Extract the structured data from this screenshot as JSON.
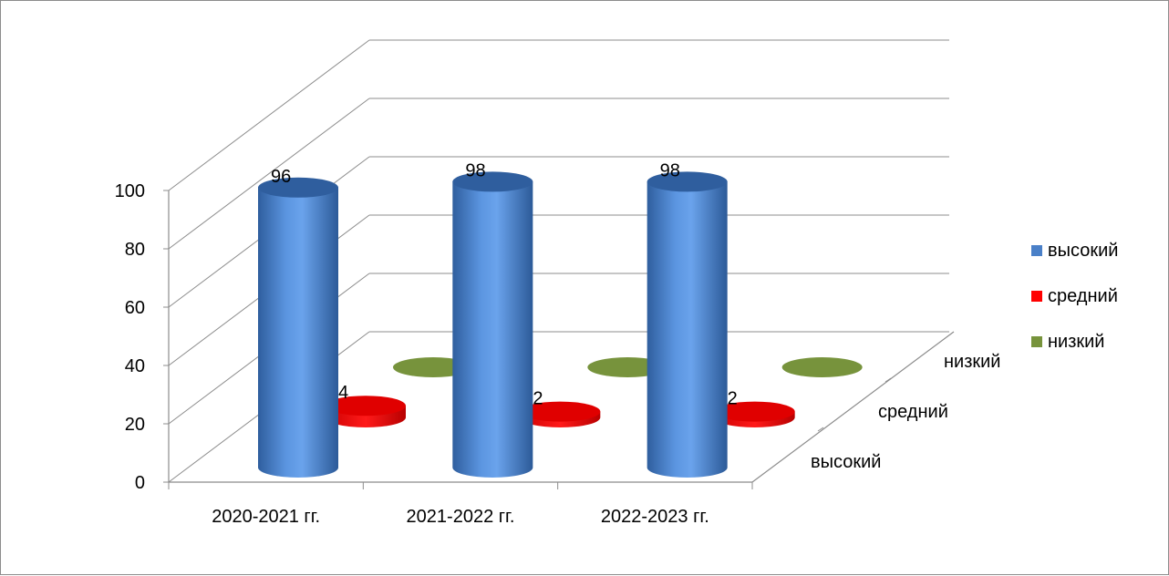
{
  "chart_data": {
    "type": "bar",
    "title": "",
    "categories": [
      "2020-2021 гг.",
      "2021-2022 гг.",
      "2022-2023 гг."
    ],
    "depth_categories": [
      "высокий",
      "средний",
      "низкий"
    ],
    "yticks": [
      "0",
      "20",
      "40",
      "60",
      "80",
      "100"
    ],
    "ylim": [
      0,
      100
    ],
    "grid": true,
    "legend_position": "right",
    "series": [
      {
        "name": "высокий",
        "values": [
          96,
          98,
          98
        ],
        "labels": [
          "96",
          "98",
          "98"
        ],
        "color": "#4a80c8"
      },
      {
        "name": "средний",
        "values": [
          4,
          2,
          2
        ],
        "labels": [
          "4",
          "2",
          "2"
        ],
        "color": "#ff0000"
      },
      {
        "name": "низкий",
        "values": [
          0,
          0,
          0
        ],
        "labels": [
          "",
          "",
          ""
        ],
        "color": "#77933c"
      }
    ]
  }
}
